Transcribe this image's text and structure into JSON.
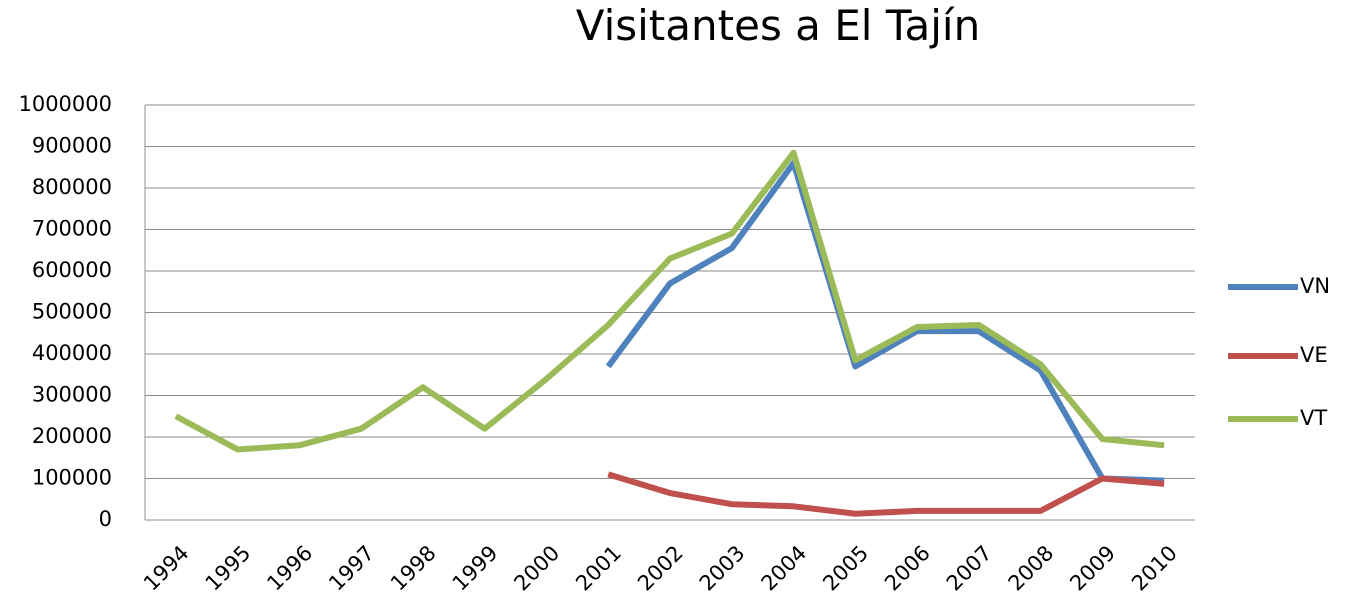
{
  "chart_data": {
    "type": "line",
    "title": "Visitantes a El Tajín",
    "categories": [
      "1994",
      "1995",
      "1996",
      "1997",
      "1998",
      "1999",
      "2000",
      "2001",
      "2002",
      "2003",
      "2004",
      "2005",
      "2006",
      "2007",
      "2008",
      "2009",
      "2010"
    ],
    "series": [
      {
        "name": "VN",
        "color": "#4f81bd",
        "values": [
          null,
          null,
          null,
          null,
          null,
          null,
          null,
          370000,
          570000,
          655000,
          860000,
          370000,
          455000,
          455000,
          360000,
          100000,
          95000
        ]
      },
      {
        "name": "VE",
        "color": "#c0504d",
        "values": [
          null,
          null,
          null,
          null,
          null,
          null,
          null,
          110000,
          65000,
          38000,
          33000,
          15000,
          22000,
          22000,
          22000,
          100000,
          87000
        ]
      },
      {
        "name": "VT",
        "color": "#9bbb59",
        "values": [
          250000,
          170000,
          180000,
          220000,
          320000,
          220000,
          340000,
          470000,
          630000,
          690000,
          885000,
          385000,
          465000,
          470000,
          375000,
          195000,
          180000
        ]
      }
    ],
    "ylim": [
      0,
      1000000
    ],
    "yticks": [
      0,
      100000,
      200000,
      300000,
      400000,
      500000,
      600000,
      700000,
      800000,
      900000,
      1000000
    ],
    "grid": true,
    "legend": "right"
  }
}
